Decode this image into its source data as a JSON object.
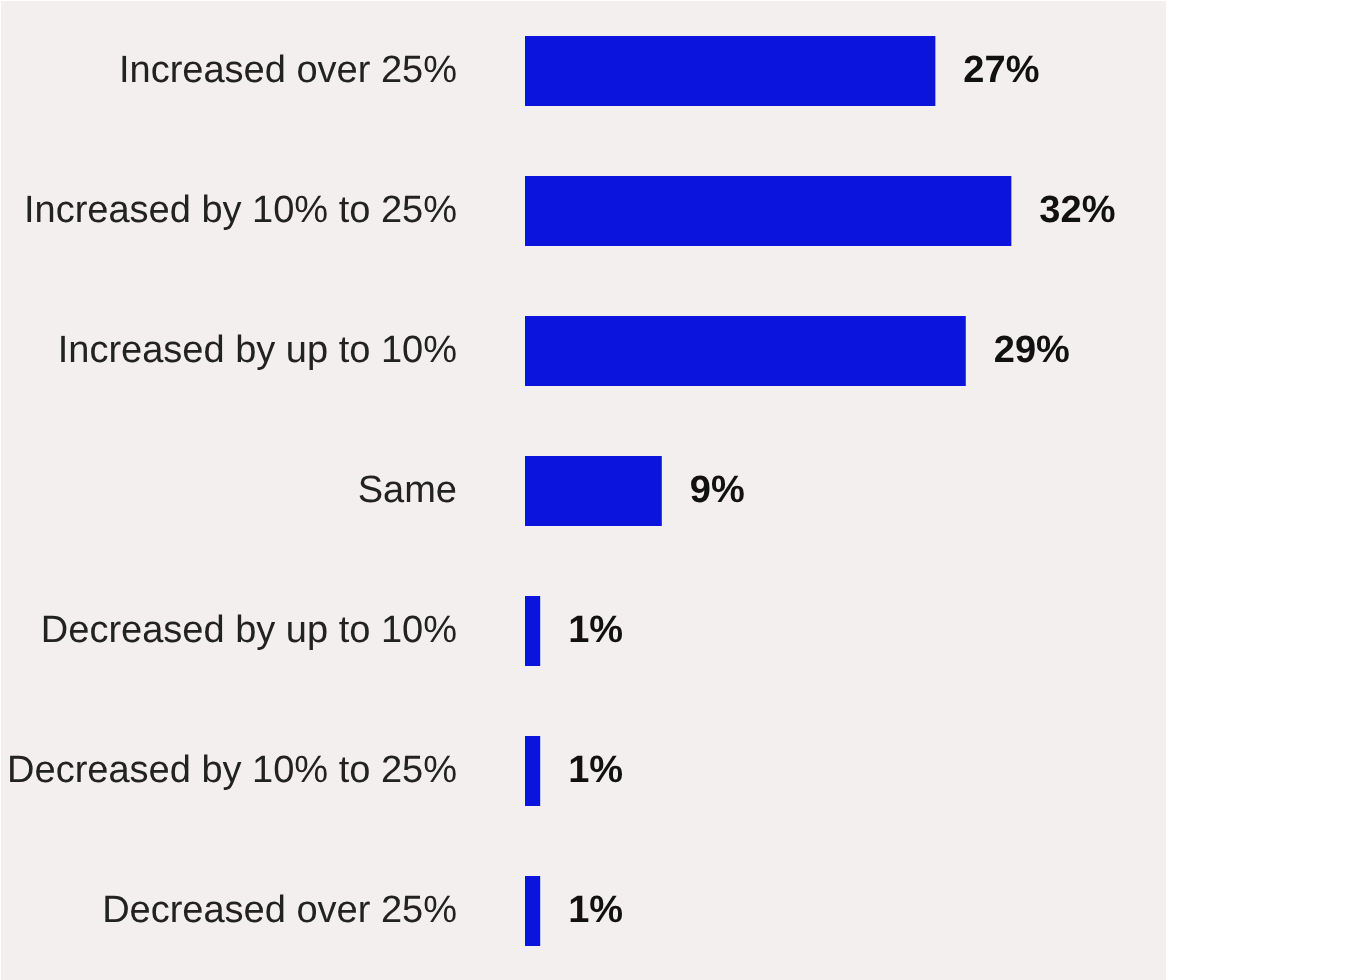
{
  "chart_data": {
    "type": "bar",
    "orientation": "horizontal",
    "categories": [
      "Increased over 25%",
      "Increased by 10% to 25%",
      "Increased by up to 10%",
      "Same",
      "Decreased by up to 10%",
      "Decreased by 10% to 25%",
      "Decreased over 25%"
    ],
    "values": [
      27,
      32,
      29,
      9,
      1,
      1,
      1
    ],
    "value_labels": [
      "27%",
      "32%",
      "29%",
      "9%",
      "1%",
      "1%",
      "1%"
    ],
    "color": "#0a14dc",
    "grid": false,
    "tick_labels": "y"
  }
}
